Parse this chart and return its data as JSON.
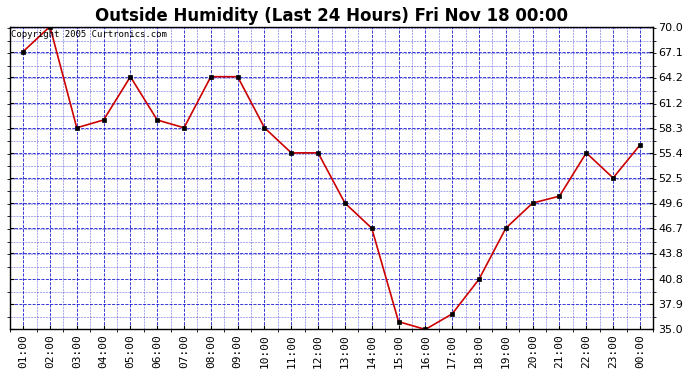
{
  "title": "Outside Humidity (Last 24 Hours) Fri Nov 18 00:00",
  "copyright": "Copyright 2005 Curtronics.com",
  "x_labels": [
    "01:00",
    "02:00",
    "03:00",
    "04:00",
    "05:00",
    "06:00",
    "07:00",
    "08:00",
    "09:00",
    "10:00",
    "11:00",
    "12:00",
    "13:00",
    "14:00",
    "15:00",
    "16:00",
    "17:00",
    "18:00",
    "19:00",
    "20:00",
    "21:00",
    "22:00",
    "23:00",
    "00:00"
  ],
  "y_values": [
    67.1,
    70.0,
    58.3,
    59.2,
    64.2,
    59.2,
    58.3,
    64.2,
    64.2,
    58.3,
    55.4,
    55.4,
    49.6,
    46.7,
    35.9,
    35.0,
    36.8,
    40.8,
    46.7,
    49.6,
    50.4,
    55.4,
    52.5,
    56.3
  ],
  "y_ticks": [
    35.0,
    37.9,
    40.8,
    43.8,
    46.7,
    49.6,
    52.5,
    55.4,
    58.3,
    61.2,
    64.2,
    67.1,
    70.0
  ],
  "y_min": 35.0,
  "y_max": 70.0,
  "line_color": "#cc0000",
  "marker_color": "#000000",
  "bg_color": "#ffffff",
  "plot_bg_color": "#ffffff",
  "grid_color": "#0000cc",
  "border_color": "#000000",
  "title_color": "#000000",
  "text_color": "#000000",
  "title_fontsize": 12,
  "tick_fontsize": 8,
  "copyright_fontsize": 6.5
}
